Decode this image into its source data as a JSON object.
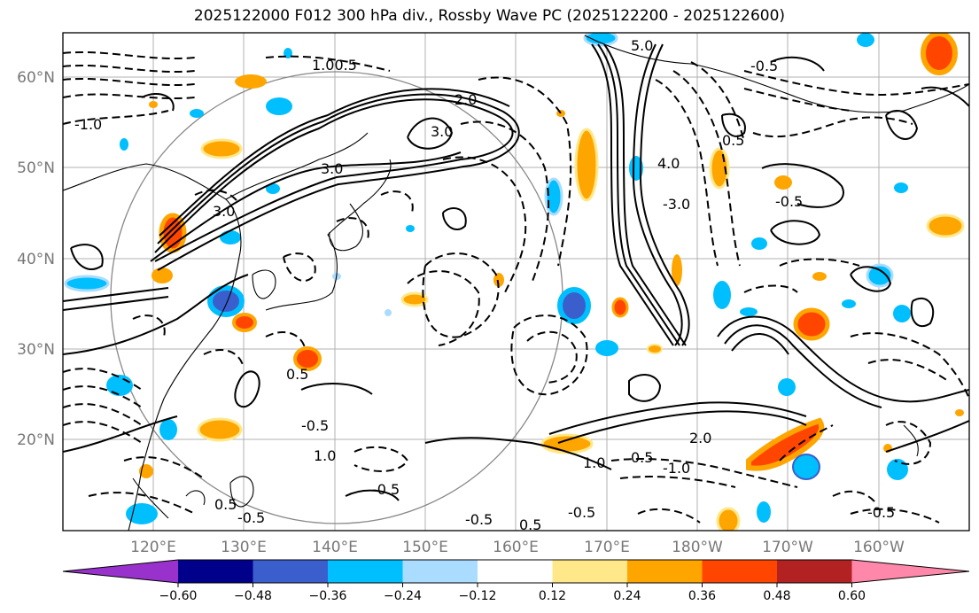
{
  "title": "2025122000 F012 300 hPa div., Rossby Wave PC (2025122200 - 2025122600)",
  "lat_labels": [
    "60°N",
    "50°N",
    "40°N",
    "30°N",
    "20°N"
  ],
  "lon_labels": [
    "120°E",
    "130°E",
    "140°E",
    "150°E",
    "160°E",
    "170°E",
    "180°W",
    "170°W",
    "160°W"
  ],
  "colorbar": {
    "ticks": [
      "−0.60",
      "−0.48",
      "−0.36",
      "−0.24",
      "−0.12",
      "0.12",
      "0.24",
      "0.36",
      "0.48",
      "0.60"
    ],
    "colors": [
      "#9932cc",
      "#00008b",
      "#3a5fcd",
      "#00bfff",
      "#aadcff",
      "#ffffff",
      "#ffe88a",
      "#ffa500",
      "#ff4500",
      "#b22222",
      "#ff88aa"
    ]
  },
  "contour_labels": [
    {
      "text": "3.0"
    },
    {
      "text": "3.0"
    },
    {
      "text": "3.0"
    },
    {
      "text": "2.0"
    },
    {
      "text": "-1.0"
    },
    {
      "text": "1.00.5"
    },
    {
      "text": "5.0"
    },
    {
      "text": "4.0"
    },
    {
      "text": "-3.0"
    },
    {
      "text": "0.5"
    },
    {
      "text": "-0.5"
    },
    {
      "text": "-0.5"
    },
    {
      "text": "0.5"
    },
    {
      "text": "-0.5"
    },
    {
      "text": "0.5"
    },
    {
      "text": "-1.0"
    },
    {
      "text": "0.5"
    },
    {
      "text": "-0.5"
    },
    {
      "text": "1.0"
    },
    {
      "text": "-0.5"
    },
    {
      "text": "2.0"
    },
    {
      "text": "-0.5"
    },
    {
      "text": "1.0"
    },
    {
      "text": "-0.5"
    },
    {
      "text": "0.5"
    },
    {
      "text": "-0.5"
    }
  ]
}
